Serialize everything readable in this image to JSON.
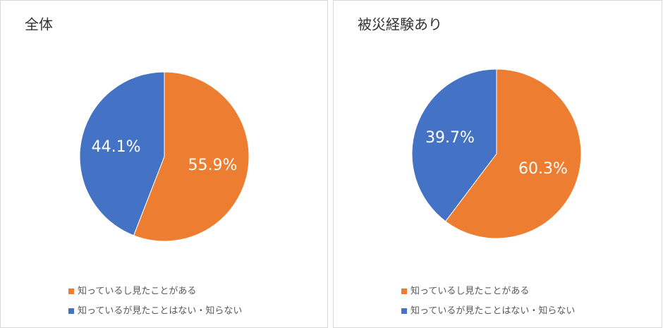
{
  "chart_data": [
    {
      "type": "pie",
      "title": "全体",
      "categories": [
        "知っているし見たことがある",
        "知っているが見たことはない・知らない"
      ],
      "values": [
        55.9,
        44.1
      ],
      "value_labels": [
        "55.9%",
        "44.1%"
      ],
      "colors": [
        "#ed7d31",
        "#4472c4"
      ]
    },
    {
      "type": "pie",
      "title": "被災経験あり",
      "categories": [
        "知っているし見たことがある",
        "知っているが見たことはない・知らない"
      ],
      "values": [
        60.3,
        39.7
      ],
      "value_labels": [
        "60.3%",
        "39.7%"
      ],
      "colors": [
        "#ed7d31",
        "#4472c4"
      ]
    }
  ]
}
